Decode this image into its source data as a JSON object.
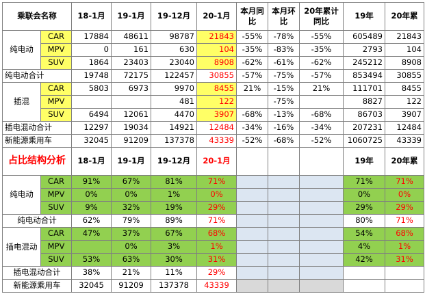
{
  "headers": {
    "name": "乘联会名称",
    "c1": "18-1月",
    "c2": "19-1月",
    "c3": "19-12月",
    "c4": "20-1月",
    "c5": "本月同比",
    "c6": "本月环比",
    "c7": "20年累计同比",
    "c8": "19年",
    "c9": "20年累"
  },
  "groups": {
    "bev": "纯电动",
    "phev": "插混",
    "bev_share": "纯电动",
    "phev_share": "插电混动"
  },
  "sub": {
    "car": "CAR",
    "mpv": "MPV",
    "suv": "SUV"
  },
  "volume": {
    "bev_car": [
      "17884",
      "48611",
      "98787",
      "21843",
      "-55%",
      "-78%",
      "-55%",
      "605489",
      "21843"
    ],
    "bev_mpv": [
      "0",
      "161",
      "630",
      "104",
      "-35%",
      "-83%",
      "-35%",
      "2793",
      "104"
    ],
    "bev_suv": [
      "1864",
      "23403",
      "23040",
      "8908",
      "-62%",
      "-61%",
      "-62%",
      "245212",
      "8908"
    ],
    "bev_total": [
      "纯电动合计",
      "19748",
      "72175",
      "122457",
      "30855",
      "-57%",
      "-75%",
      "-57%",
      "853494",
      "30855"
    ],
    "phev_car": [
      "5803",
      "6973",
      "9970",
      "8455",
      "21%",
      "-15%",
      "21%",
      "111701",
      "8455"
    ],
    "phev_mpv": [
      "",
      "",
      "481",
      "122",
      "",
      "-75%",
      "",
      "8827",
      "122"
    ],
    "phev_suv": [
      "6494",
      "12061",
      "4470",
      "3907",
      "-68%",
      "-13%",
      "-68%",
      "86703",
      "3907"
    ],
    "phev_total": [
      "插电混动合计",
      "12297",
      "19034",
      "14921",
      "12484",
      "-34%",
      "-16%",
      "-34%",
      "207231",
      "12484"
    ],
    "nev_total": [
      "新能源乘用车",
      "32045",
      "91209",
      "137378",
      "43339",
      "-52%",
      "-68%",
      "-52%",
      "1060725",
      "43339"
    ]
  },
  "share_header": {
    "title": "占比结构分析",
    "c1": "18-1月",
    "c2": "19-1月",
    "c3": "19-12月",
    "c4": "20-1月",
    "c8": "19年",
    "c9": "20年累"
  },
  "share": {
    "bev_car": [
      "91%",
      "67%",
      "81%",
      "71%",
      "71%",
      "71%"
    ],
    "bev_mpv": [
      "0%",
      "0%",
      "1%",
      "0%",
      "0%",
      "0%"
    ],
    "bev_suv": [
      "9%",
      "32%",
      "19%",
      "29%",
      "29%",
      "29%"
    ],
    "bev_total": [
      "纯电动合计",
      "62%",
      "79%",
      "89%",
      "71%",
      "80%",
      "71%"
    ],
    "phev_car": [
      "47%",
      "37%",
      "67%",
      "68%",
      "54%",
      "68%"
    ],
    "phev_mpv": [
      "",
      "0%",
      "3%",
      "1%",
      "4%",
      "1%"
    ],
    "phev_suv": [
      "53%",
      "63%",
      "30%",
      "31%",
      "42%",
      "31%"
    ],
    "phev_total": [
      "插电混动合计",
      "38%",
      "21%",
      "11%",
      "29%",
      "",
      ""
    ],
    "nev_total": [
      "新能源乘用车",
      "32045",
      "91209",
      "137378",
      "43339",
      "",
      ""
    ]
  },
  "colors": {
    "yellow": "#ffff66",
    "green": "#92d050",
    "light_blue": "#dce6f2",
    "grey": "#d9d9d9",
    "red_text": "#ff0000"
  }
}
